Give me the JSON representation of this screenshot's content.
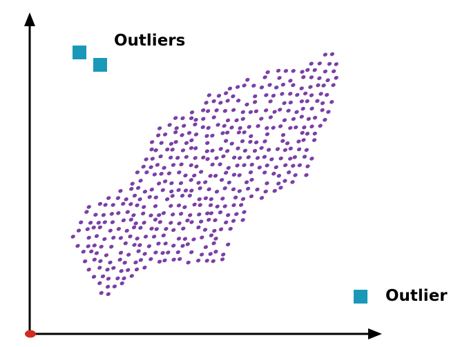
{
  "labels": {
    "outliers_group": "Outliers",
    "outlier_single": "Outlier"
  },
  "colors": {
    "inlier_dot": "#7b3fa6",
    "outlier_square": "#1a98b8",
    "axis": "#000000",
    "origin": "#d42b1e"
  },
  "icons": {
    "inlier": "purple-ellipse-dot",
    "outlier": "teal-square-marker",
    "origin": "red-origin-dot",
    "axis_arrow": "black-arrowhead"
  }
}
